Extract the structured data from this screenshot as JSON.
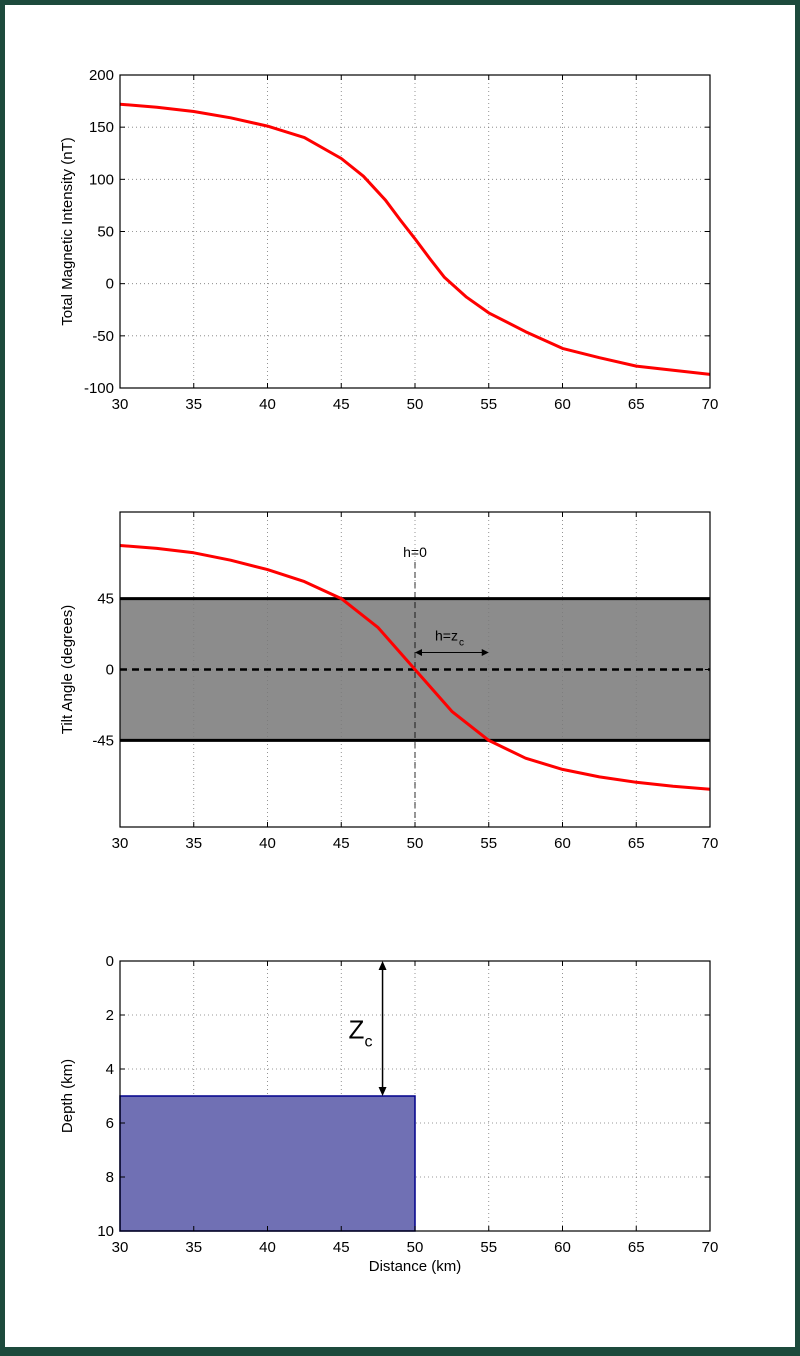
{
  "chart_data": [
    {
      "type": "line",
      "title": "",
      "xlabel": "",
      "ylabel": "Total Magnetic Intensity (nT)",
      "xlim": [
        30,
        70
      ],
      "ylim": [
        -100,
        200
      ],
      "xticks": [
        30,
        35,
        40,
        45,
        50,
        55,
        60,
        65,
        70
      ],
      "yticks": [
        -100,
        -50,
        0,
        50,
        100,
        150,
        200
      ],
      "grid": true,
      "series": [
        {
          "color": "#ff0000",
          "x": [
            30,
            32.5,
            35,
            37.5,
            40,
            42.5,
            45,
            46.5,
            48,
            49,
            50,
            51,
            52,
            53.5,
            55,
            57.5,
            60,
            62.5,
            65,
            67.5,
            70
          ],
          "y": [
            172,
            169,
            165,
            159,
            151,
            140,
            120,
            103,
            80,
            61,
            43,
            24,
            6,
            -13,
            -28,
            -46,
            -62,
            -71,
            -79,
            -83,
            -87
          ]
        }
      ]
    },
    {
      "type": "line",
      "title": "",
      "xlabel": "",
      "ylabel": "Tilt Angle (degrees)",
      "xlim": [
        30,
        70
      ],
      "ylim": [
        -100,
        100
      ],
      "xticks": [
        30,
        35,
        40,
        45,
        50,
        55,
        60,
        65,
        70
      ],
      "yticks": [
        -45,
        0,
        45
      ],
      "grid": true,
      "shaded_band": {
        "from": -45,
        "to": 45,
        "color": "#8c8c8c"
      },
      "annotations": [
        {
          "text": "h=0",
          "x": 50
        },
        {
          "text": "h=z",
          "subscript": "c",
          "x_range": [
            50,
            55
          ],
          "y": 10
        }
      ],
      "series": [
        {
          "color": "#ff0000",
          "x": [
            30,
            32.5,
            35,
            37.5,
            40,
            42.5,
            45,
            47.5,
            50,
            52.5,
            55,
            57.5,
            60,
            62.5,
            65,
            67.5,
            70
          ],
          "y": [
            78.7,
            76.9,
            74.1,
            69.4,
            63.4,
            55.8,
            45,
            26.6,
            0,
            -26.6,
            -45,
            -56.3,
            -63.4,
            -68.2,
            -71.6,
            -74.1,
            -76
          ]
        }
      ]
    },
    {
      "type": "area",
      "title": "",
      "xlabel": "Distance (km)",
      "ylabel": "Depth (km)",
      "xlim": [
        30,
        70
      ],
      "ylim": [
        10,
        0
      ],
      "xticks": [
        30,
        35,
        40,
        45,
        50,
        55,
        60,
        65,
        70
      ],
      "yticks": [
        0,
        2,
        4,
        6,
        8,
        10
      ],
      "grid": true,
      "body": {
        "x": [
          30,
          50
        ],
        "top_depth": 5,
        "bottom_depth": 10,
        "color": "#7070b4",
        "edge_color": "#00008b"
      },
      "annotations": [
        {
          "text": "Z",
          "subscript": "c",
          "arrow_x": 47.8,
          "arrow_from": 0,
          "arrow_to": 5
        }
      ]
    }
  ]
}
